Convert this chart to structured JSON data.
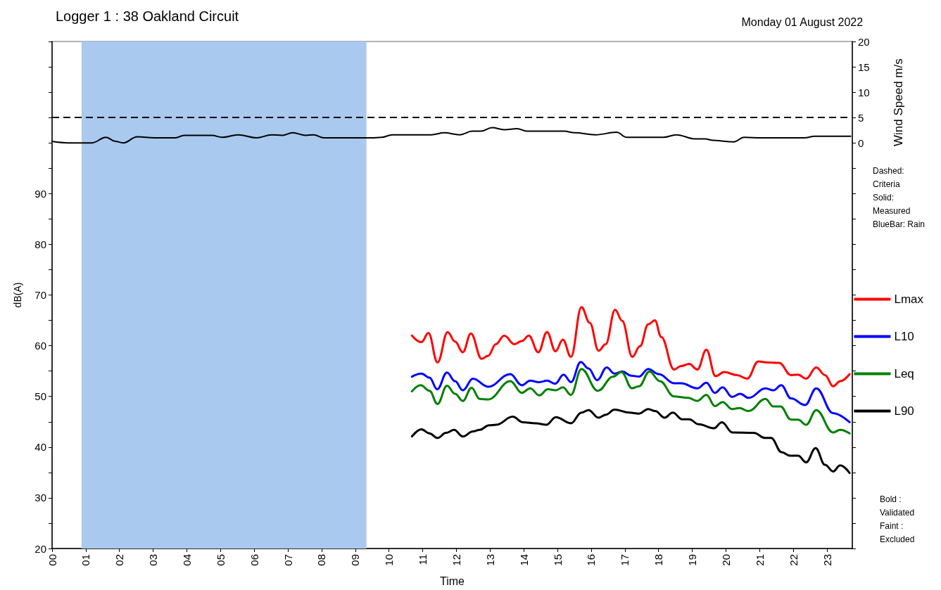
{
  "chart_data": {
    "type": "line",
    "title": "Logger 1 : 38 Oakland Circuit",
    "subtitle": "Monday 01 August 2022",
    "xlabel": "Time",
    "ylabel": "dB(A)",
    "y2label": "Wind Speed m/s",
    "annotations": [
      "Dashed:\nCriteria\nSolid:\nMeasured\nBlueBar: Rain",
      "Bold :\nValidated\nFaint :\nExcluded"
    ],
    "xlim": [
      0,
      23.75
    ],
    "xticks": [
      {
        "value": 0,
        "label": "00"
      },
      {
        "value": 1,
        "label": "01"
      },
      {
        "value": 2,
        "label": "02"
      },
      {
        "value": 3,
        "label": "03"
      },
      {
        "value": 4,
        "label": "04"
      },
      {
        "value": 5,
        "label": "05"
      },
      {
        "value": 6,
        "label": "06"
      },
      {
        "value": 7,
        "label": "07"
      },
      {
        "value": 8,
        "label": "08"
      },
      {
        "value": 9,
        "label": "09"
      },
      10,
      11,
      12,
      13,
      14,
      15,
      16,
      17,
      18,
      19,
      20,
      21,
      22,
      23
    ],
    "ylim": [
      20,
      120
    ],
    "yticks": [
      20,
      {
        "value": 25,
        "label": null
      },
      30,
      {
        "value": 35,
        "label": null
      },
      40,
      {
        "value": 45,
        "label": null
      },
      50,
      {
        "value": 55,
        "label": null
      },
      60,
      {
        "value": 65,
        "label": null
      },
      70,
      {
        "value": 75,
        "label": null
      },
      80,
      {
        "value": 85,
        "label": null
      },
      90,
      {
        "value": 95,
        "label": null
      },
      {
        "value": 100,
        "label": null
      },
      {
        "value": 105,
        "label": null
      },
      {
        "value": 110,
        "label": null
      },
      {
        "value": 115,
        "label": null
      },
      {
        "value": 120,
        "label": null
      }
    ],
    "y2lim": [
      -80,
      20
    ],
    "y2ticks": [
      {
        "value": -80,
        "label": null
      },
      {
        "value": -75,
        "label": null
      },
      {
        "value": -70,
        "label": null
      },
      {
        "value": -65,
        "label": null
      },
      {
        "value": -60,
        "label": null
      },
      {
        "value": -55,
        "label": null
      },
      {
        "value": -50,
        "label": null
      },
      {
        "value": -45,
        "label": null
      },
      {
        "value": -40,
        "label": null
      },
      {
        "value": -35,
        "label": null
      },
      {
        "value": -30,
        "label": null
      },
      {
        "value": -25,
        "label": null
      },
      {
        "value": -20,
        "label": null
      },
      {
        "value": -15,
        "label": null
      },
      {
        "value": -10,
        "label": null
      },
      {
        "value": -5,
        "label": null
      },
      0,
      5,
      10,
      15,
      20
    ],
    "legend": "right",
    "grid": false,
    "marker": "none",
    "line_style": "solid",
    "ref_lines": [
      {
        "axis": "y2",
        "value": 5,
        "color": "#000000",
        "line_style": "dashed"
      }
    ],
    "bands": [
      {
        "axis": "x",
        "from": 0.875,
        "to": 9.33,
        "color": "#a9c9ef"
      }
    ],
    "series": [
      {
        "name": "Lmax",
        "color": "#ff0000",
        "x": [
          10.68,
          10.96,
          11.17,
          11.44,
          11.74,
          11.96,
          12.19,
          12.43,
          12.75,
          12.94,
          13.17,
          13.42,
          13.72,
          13.94,
          14.15,
          14.43,
          14.69,
          14.94,
          15.16,
          15.4,
          15.71,
          15.96,
          16.22,
          16.43,
          16.71,
          16.92,
          17.22,
          17.45,
          17.69,
          17.89,
          18.08,
          18.46,
          18.67,
          18.91,
          19.15,
          19.42,
          19.69,
          19.95,
          20.33,
          20.63,
          20.96,
          21.24,
          21.58,
          21.93,
          22.14,
          22.38,
          22.68,
          22.94,
          23.18,
          23.39,
          23.67
        ],
        "values": [
          62.0,
          60.7,
          62.5,
          56.7,
          62.7,
          60.8,
          58.7,
          62.4,
          57.4,
          58.0,
          60.3,
          62.0,
          60.3,
          60.9,
          62.0,
          58.7,
          62.7,
          58.9,
          61.2,
          57.8,
          67.6,
          64.5,
          59.0,
          60.3,
          67.1,
          64.9,
          57.8,
          59.9,
          64.2,
          65.0,
          61.7,
          55.3,
          56.0,
          56.4,
          55.3,
          59.2,
          54.0,
          54.8,
          54.2,
          53.5,
          56.9,
          56.7,
          56.6,
          54.2,
          54.3,
          53.5,
          55.7,
          54.2,
          52.0,
          53.0,
          54.4
        ]
      },
      {
        "name": "L10",
        "color": "#0000ff",
        "x": [
          10.68,
          10.96,
          11.2,
          11.43,
          11.72,
          11.96,
          12.19,
          12.49,
          12.94,
          13.6,
          13.94,
          14.19,
          14.46,
          14.69,
          14.93,
          15.18,
          15.4,
          15.69,
          15.92,
          16.18,
          16.46,
          16.69,
          16.92,
          17.19,
          17.42,
          17.69,
          18.01,
          18.46,
          18.67,
          19.15,
          19.42,
          19.67,
          19.9,
          20.18,
          20.42,
          20.68,
          21.17,
          21.41,
          21.64,
          21.93,
          22.35,
          22.68,
          23.18,
          23.67
        ],
        "values": [
          53.9,
          54.5,
          53.7,
          51.4,
          54.7,
          53.0,
          51.2,
          53.5,
          51.9,
          54.4,
          52.2,
          53.1,
          52.8,
          53.1,
          52.5,
          54.3,
          52.8,
          56.8,
          55.5,
          53.2,
          55.7,
          54.5,
          54.9,
          54.1,
          53.9,
          55.4,
          54.4,
          52.6,
          52.6,
          51.6,
          52.7,
          50.7,
          51.8,
          49.9,
          50.5,
          49.7,
          51.6,
          51.2,
          52.2,
          49.6,
          48.3,
          51.6,
          46.7,
          44.9
        ]
      },
      {
        "name": "Leq",
        "color": "#008000",
        "x": [
          10.68,
          10.94,
          11.2,
          11.44,
          11.72,
          11.96,
          12.19,
          12.45,
          12.69,
          12.94,
          13.6,
          13.94,
          14.19,
          14.46,
          14.71,
          14.95,
          15.16,
          15.4,
          15.71,
          16.2,
          16.65,
          16.9,
          17.21,
          17.42,
          17.73,
          18.04,
          18.46,
          18.88,
          19.15,
          19.42,
          19.67,
          19.9,
          20.18,
          20.4,
          20.67,
          21.17,
          21.41,
          21.62,
          21.93,
          22.14,
          22.38,
          22.68,
          23.18,
          23.39,
          23.67
        ],
        "values": [
          51.0,
          52.2,
          51.1,
          48.5,
          52.1,
          50.5,
          49.1,
          51.7,
          49.5,
          49.4,
          53.0,
          50.7,
          51.6,
          50.2,
          51.4,
          51.2,
          51.8,
          50.3,
          55.4,
          51.1,
          53.9,
          54.8,
          51.6,
          52.0,
          54.9,
          53.0,
          50.0,
          49.7,
          49.1,
          50.3,
          48.1,
          48.9,
          47.5,
          47.7,
          47.1,
          49.5,
          48.0,
          48.0,
          45.4,
          45.4,
          44.4,
          47.3,
          42.9,
          43.4,
          42.7
        ]
      },
      {
        "name": "L90",
        "color": "#000000",
        "x": [
          10.68,
          10.96,
          11.2,
          11.44,
          11.69,
          11.93,
          12.19,
          12.49,
          12.69,
          12.97,
          13.18,
          13.67,
          13.98,
          14.36,
          14.67,
          14.95,
          15.4,
          15.71,
          15.92,
          16.22,
          16.44,
          16.69,
          17.14,
          17.42,
          17.69,
          17.9,
          18.18,
          18.42,
          18.7,
          18.91,
          19.19,
          19.64,
          19.88,
          20.19,
          20.82,
          21.17,
          21.34,
          21.65,
          21.9,
          22.14,
          22.38,
          22.66,
          22.94,
          23.18,
          23.39,
          23.67
        ],
        "values": [
          42.1,
          43.5,
          42.7,
          41.8,
          42.8,
          43.4,
          42.1,
          43.1,
          43.4,
          44.3,
          44.4,
          46.0,
          44.9,
          44.7,
          44.4,
          45.9,
          44.7,
          46.8,
          47.3,
          45.8,
          46.4,
          47.4,
          46.8,
          46.6,
          47.5,
          47.1,
          45.8,
          46.8,
          45.5,
          45.5,
          44.5,
          43.7,
          44.9,
          42.9,
          42.8,
          41.8,
          41.8,
          39.0,
          38.3,
          38.3,
          37.0,
          39.8,
          36.5,
          35.2,
          36.4,
          34.9
        ]
      },
      {
        "color": "#000000",
        "axis": "y2",
        "x": [
          0,
          0.48,
          1.18,
          1.6,
          1.88,
          2.11,
          2.53,
          3.04,
          3.66,
          3.92,
          4.74,
          5.05,
          5.52,
          6.06,
          6.52,
          6.83,
          7.14,
          7.53,
          7.76,
          8.07,
          9.47,
          9.78,
          10.09,
          11.25,
          11.64,
          12.1,
          12.47,
          12.72,
          13.06,
          13.42,
          13.8,
          14.11,
          15.2,
          15.51,
          16.13,
          16.75,
          17.06,
          18.14,
          18.53,
          19.07,
          19.38,
          19.61,
          20.23,
          20.54,
          21.08,
          22.32,
          22.63,
          23.7
        ],
        "values": [
          0.3,
          0.0,
          0.0,
          1.1,
          0.3,
          0.0,
          1.2,
          1.0,
          1.0,
          1.5,
          1.5,
          1.1,
          1.6,
          1.0,
          1.6,
          1.5,
          2.0,
          1.5,
          1.6,
          1.0,
          1.0,
          1.1,
          1.6,
          1.6,
          2.0,
          1.6,
          2.3,
          2.3,
          3.0,
          2.6,
          2.8,
          2.3,
          2.3,
          2.0,
          1.6,
          2.1,
          1.1,
          1.1,
          1.6,
          0.8,
          0.8,
          0.5,
          0.2,
          1.1,
          1.0,
          1.0,
          1.3,
          1.3
        ]
      }
    ]
  }
}
